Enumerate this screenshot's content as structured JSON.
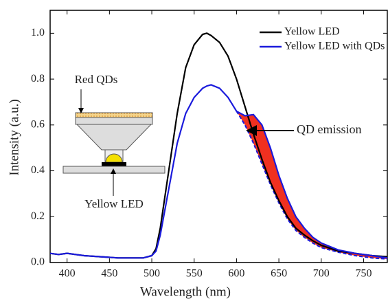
{
  "chart_data": {
    "type": "line",
    "x_label": "Wavelength (nm)",
    "y_label": "Intensity (a.u.)",
    "x": [
      380,
      390,
      400,
      410,
      420,
      440,
      460,
      480,
      490,
      500,
      505,
      510,
      520,
      530,
      540,
      550,
      560,
      565,
      570,
      580,
      590,
      600,
      610,
      620,
      630,
      640,
      650,
      660,
      670,
      680,
      690,
      700,
      720,
      740,
      760,
      778
    ],
    "series": [
      {
        "name": "Yellow LED",
        "color": "#000000",
        "values": [
          0.04,
          0.035,
          0.04,
          0.035,
          0.03,
          0.025,
          0.02,
          0.02,
          0.02,
          0.03,
          0.06,
          0.15,
          0.4,
          0.65,
          0.85,
          0.95,
          0.995,
          1.0,
          0.99,
          0.96,
          0.9,
          0.8,
          0.68,
          0.56,
          0.45,
          0.35,
          0.27,
          0.2,
          0.15,
          0.12,
          0.095,
          0.075,
          0.05,
          0.04,
          0.03,
          0.025
        ]
      },
      {
        "name": "Yellow LED with QDs",
        "color": "#1a1adc",
        "values": [
          0.04,
          0.035,
          0.04,
          0.035,
          0.03,
          0.025,
          0.02,
          0.02,
          0.02,
          0.03,
          0.05,
          0.12,
          0.32,
          0.52,
          0.65,
          0.72,
          0.76,
          0.77,
          0.775,
          0.76,
          0.72,
          0.66,
          0.64,
          0.645,
          0.6,
          0.5,
          0.38,
          0.28,
          0.2,
          0.15,
          0.11,
          0.085,
          0.055,
          0.04,
          0.03,
          0.02
        ]
      }
    ],
    "fill": {
      "label": "QD emission",
      "color": "#f03020",
      "x": [
        600,
        610,
        620,
        630,
        640,
        650,
        660,
        670,
        680,
        690,
        700,
        720,
        740,
        760,
        778
      ],
      "lower": [
        0.66,
        0.6,
        0.52,
        0.43,
        0.34,
        0.26,
        0.19,
        0.14,
        0.11,
        0.085,
        0.065,
        0.045,
        0.03,
        0.02,
        0.015
      ]
    },
    "inset_labels": [
      "Red QDs",
      "Yellow LED"
    ],
    "xlim": [
      380,
      778
    ],
    "ylim": [
      0,
      1.1
    ],
    "xticks": [
      400,
      450,
      500,
      550,
      600,
      650,
      700,
      750
    ],
    "yticks": [
      {
        "value": 0,
        "label": "0.0"
      },
      0.2,
      0.4,
      0.6,
      0.8,
      {
        "value": 1,
        "label": "1.0"
      }
    ],
    "legend": "upper right"
  }
}
